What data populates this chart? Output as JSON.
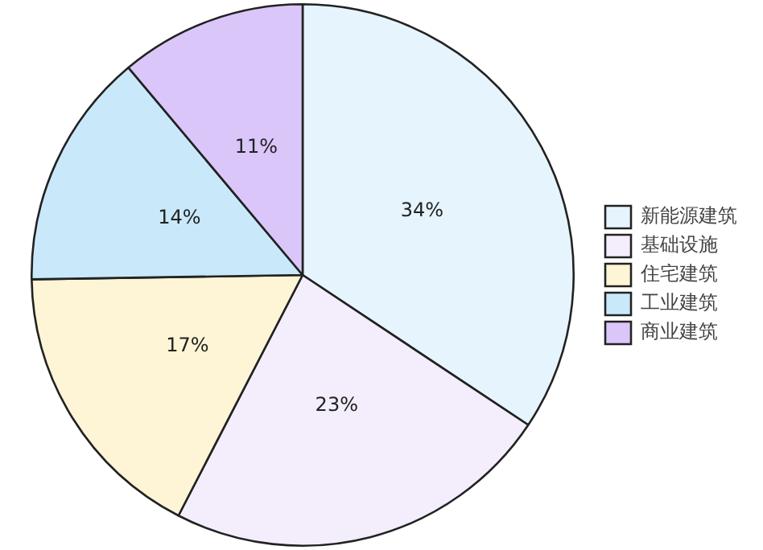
{
  "chart_data": {
    "type": "pie",
    "categories": [
      "新能源建筑",
      "基础设施",
      "住宅建筑",
      "工业建筑",
      "商业建筑"
    ],
    "values": [
      34,
      23,
      17,
      14,
      11
    ],
    "value_labels": [
      "34%",
      "23%",
      "17%",
      "14%",
      "11%"
    ],
    "colors": [
      "#e6f4fd",
      "#f4eefc",
      "#fdf5d6",
      "#c9e9fb",
      "#dbc6fa"
    ],
    "legend": "right"
  }
}
